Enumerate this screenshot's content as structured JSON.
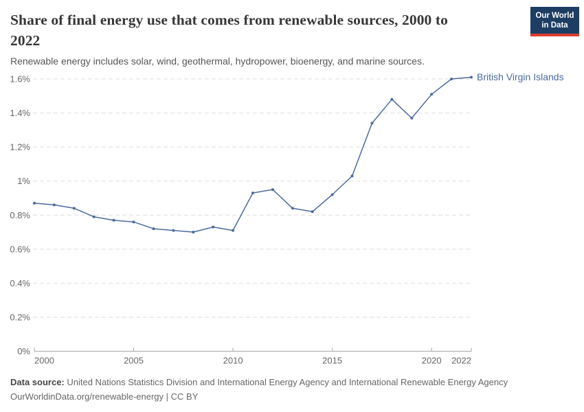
{
  "header": {
    "title": "Share of final energy use that comes from renewable sources, 2000 to 2022",
    "subtitle": "Renewable energy includes solar, wind, geothermal, hydropower, bioenergy, and marine sources."
  },
  "logo": {
    "line1": "Our World",
    "line2": "in Data",
    "bg_color": "#1d3d63",
    "accent_color": "#dc3e2c"
  },
  "chart_data": {
    "type": "line",
    "title": "Share of final energy use that comes from renewable sources, 2000 to 2022",
    "x": [
      2000,
      2001,
      2002,
      2003,
      2004,
      2005,
      2006,
      2007,
      2008,
      2009,
      2010,
      2011,
      2012,
      2013,
      2014,
      2015,
      2016,
      2017,
      2018,
      2019,
      2020,
      2021,
      2022
    ],
    "series": [
      {
        "name": "British Virgin Islands",
        "color": "#4c6a9c",
        "values": [
          0.87,
          0.86,
          0.84,
          0.79,
          0.77,
          0.76,
          0.72,
          0.71,
          0.7,
          0.73,
          0.71,
          0.93,
          0.95,
          0.84,
          0.82,
          0.92,
          1.03,
          1.34,
          1.48,
          1.37,
          1.51,
          1.6,
          1.61
        ]
      }
    ],
    "ylim": [
      0,
      1.6
    ],
    "xlim": [
      2000,
      2022
    ],
    "y_ticks": [
      {
        "value": 0,
        "label": "0%"
      },
      {
        "value": 0.2,
        "label": "0.2%"
      },
      {
        "value": 0.4,
        "label": "0.4%"
      },
      {
        "value": 0.6,
        "label": "0.6%"
      },
      {
        "value": 0.8,
        "label": "0.8%"
      },
      {
        "value": 1.0,
        "label": "1%"
      },
      {
        "value": 1.2,
        "label": "1.2%"
      },
      {
        "value": 1.4,
        "label": "1.4%"
      },
      {
        "value": 1.6,
        "label": "1.6%"
      }
    ],
    "x_ticks": [
      {
        "value": 2000,
        "label": "2000"
      },
      {
        "value": 2005,
        "label": "2005"
      },
      {
        "value": 2010,
        "label": "2010"
      },
      {
        "value": 2015,
        "label": "2015"
      },
      {
        "value": 2020,
        "label": "2020"
      },
      {
        "value": 2022,
        "label": "2022"
      }
    ],
    "grid": "horizontal-dashed",
    "legend": "end-of-line-label",
    "marker": "dot",
    "grid_color": "#dddddd",
    "axis_color": "#a6a6a6",
    "tick_label_color": "#666666"
  },
  "footer": {
    "source_label": "Data source:",
    "source_text": " United Nations Statistics Division and International Energy Agency and International Renewable Energy Agency",
    "attribution": "OurWorldinData.org/renewable-energy | CC BY"
  }
}
